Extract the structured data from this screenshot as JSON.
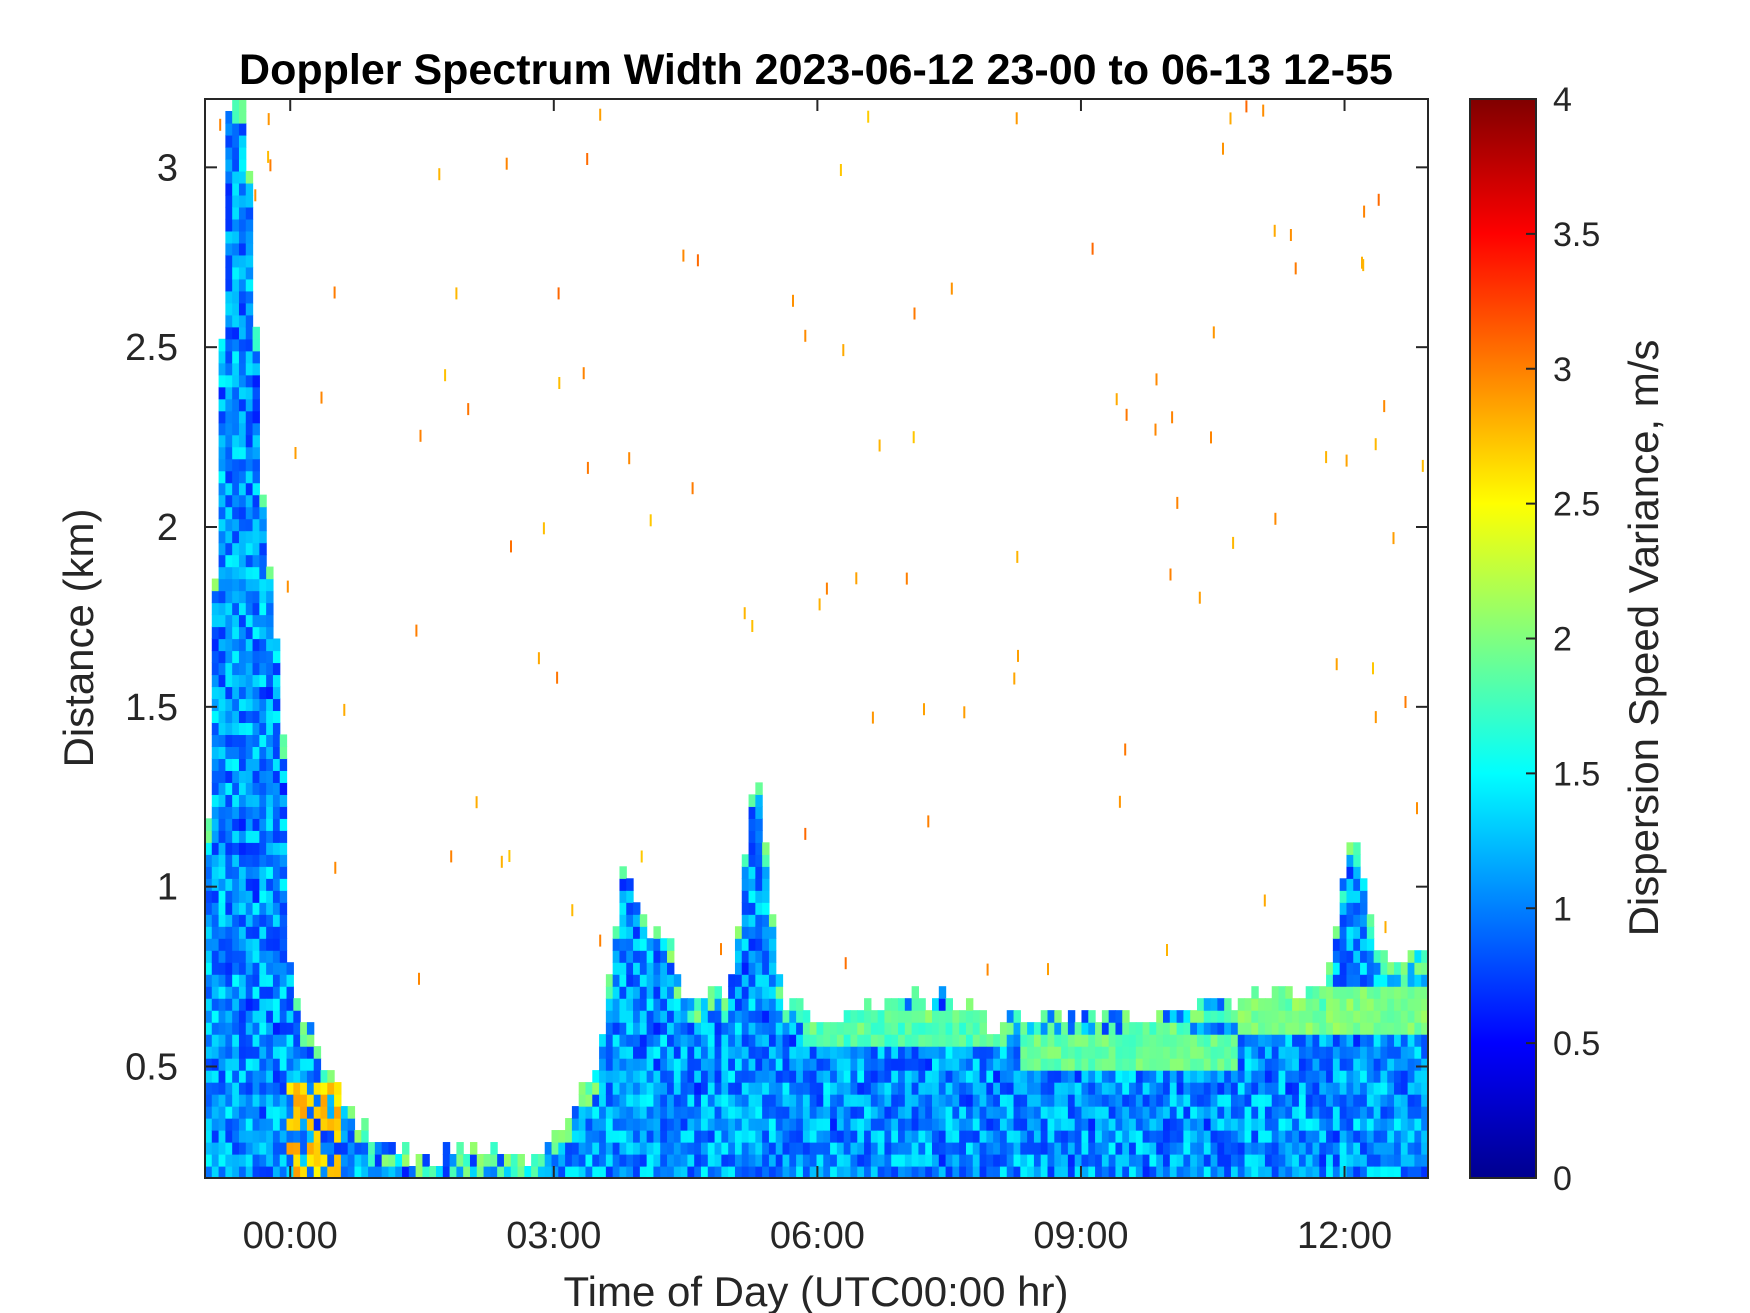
{
  "chart_data": {
    "type": "heatmap",
    "title": "Doppler Spectrum Width 2023-06-12 23-00 to 06-13 12-55",
    "xlabel": "Time of Day (UTC00:00 hr)",
    "ylabel": "Distance (km)",
    "colorbar_label": "Dispersion Speed Variance, m/s",
    "xlim_hours": [
      -0.97,
      12.95
    ],
    "ylim_km": [
      0.19,
      3.19
    ],
    "clim": [
      0,
      4
    ],
    "colormap": "jet",
    "x_ticks": [
      {
        "value": 0,
        "label": "00:00"
      },
      {
        "value": 3,
        "label": "03:00"
      },
      {
        "value": 6,
        "label": "06:00"
      },
      {
        "value": 9,
        "label": "09:00"
      },
      {
        "value": 12,
        "label": "12:00"
      }
    ],
    "y_ticks": [
      {
        "value": 0.5,
        "label": "0.5"
      },
      {
        "value": 1,
        "label": "1"
      },
      {
        "value": 1.5,
        "label": "1.5"
      },
      {
        "value": 2,
        "label": "2"
      },
      {
        "value": 2.5,
        "label": "2.5"
      },
      {
        "value": 3,
        "label": "3"
      }
    ],
    "colorbar_ticks": [
      {
        "value": 0,
        "label": "0"
      },
      {
        "value": 0.5,
        "label": "0.5"
      },
      {
        "value": 1,
        "label": "1"
      },
      {
        "value": 1.5,
        "label": "1.5"
      },
      {
        "value": 2,
        "label": "2"
      },
      {
        "value": 2.5,
        "label": "2.5"
      },
      {
        "value": 3,
        "label": "3"
      },
      {
        "value": 3.5,
        "label": "3.5"
      },
      {
        "value": 4,
        "label": "4"
      }
    ],
    "signal_top_km": [
      [
        -0.97,
        0.85
      ],
      [
        -0.7,
        3.19
      ],
      [
        -0.5,
        3.19
      ],
      [
        -0.3,
        2.0
      ],
      [
        -0.1,
        1.6
      ],
      [
        0.0,
        0.75
      ],
      [
        0.3,
        0.55
      ],
      [
        0.6,
        0.42
      ],
      [
        1.0,
        0.28
      ],
      [
        1.5,
        0.24
      ],
      [
        2.0,
        0.27
      ],
      [
        2.5,
        0.27
      ],
      [
        2.9,
        0.25
      ],
      [
        3.2,
        0.4
      ],
      [
        3.5,
        0.5
      ],
      [
        3.8,
        1.1
      ],
      [
        4.0,
        0.9
      ],
      [
        4.3,
        0.85
      ],
      [
        4.5,
        0.7
      ],
      [
        5.0,
        0.7
      ],
      [
        5.3,
        1.35
      ],
      [
        5.6,
        0.68
      ],
      [
        6.0,
        0.62
      ],
      [
        7.0,
        0.7
      ],
      [
        7.6,
        0.68
      ],
      [
        8.0,
        0.62
      ],
      [
        9.0,
        0.65
      ],
      [
        10.0,
        0.64
      ],
      [
        11.0,
        0.7
      ],
      [
        11.8,
        0.72
      ],
      [
        12.1,
        1.2
      ],
      [
        12.4,
        0.8
      ],
      [
        12.95,
        0.8
      ]
    ],
    "green_layer": [
      {
        "x0": 5.8,
        "x1": 8.0,
        "y0": 0.56,
        "y1": 0.64,
        "value": 1.8
      },
      {
        "x0": 8.3,
        "x1": 10.8,
        "y0": 0.5,
        "y1": 0.6,
        "value": 1.9
      },
      {
        "x0": 10.8,
        "x1": 12.95,
        "y0": 0.58,
        "y1": 0.72,
        "value": 2.0
      }
    ],
    "warm_core": {
      "x0": -0.05,
      "x1": 0.6,
      "y0": 0.19,
      "y1": 0.45,
      "value": 2.7
    },
    "sparse_specks_value": 2.9
  }
}
